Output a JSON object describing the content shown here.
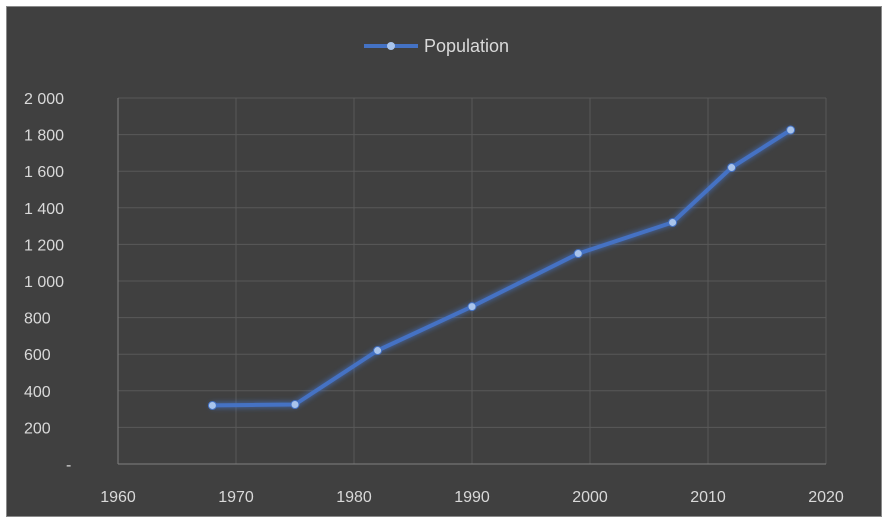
{
  "chart_data": {
    "type": "line",
    "x": [
      1968,
      1975,
      1982,
      1990,
      1999,
      2007,
      2012,
      2017
    ],
    "series": [
      {
        "name": "Population",
        "values": [
          320,
          325,
          620,
          860,
          1150,
          1320,
          1620,
          1825
        ],
        "color": "#4472c4"
      }
    ],
    "xlim": [
      1960,
      2020
    ],
    "ylim": [
      0,
      2000
    ],
    "x_ticks": [
      1960,
      1970,
      1980,
      1990,
      2000,
      2010,
      2020
    ],
    "x_tick_labels": [
      "1960",
      "1970",
      "1980",
      "1990",
      "2000",
      "2010",
      "2020"
    ],
    "y_ticks": [
      0,
      200,
      400,
      600,
      800,
      1000,
      1200,
      1400,
      1600,
      1800,
      2000
    ],
    "y_tick_labels": [
      "-",
      "200",
      "400",
      "600",
      "800",
      "1 000",
      "1 200",
      "1 400",
      "1 600",
      "1 800",
      "2 000"
    ],
    "grid": true,
    "legend": "top-center",
    "background": "#404040",
    "grid_color": "#595959",
    "text_color": "#d9d9d9",
    "marker_color": "#a9c4eb"
  }
}
